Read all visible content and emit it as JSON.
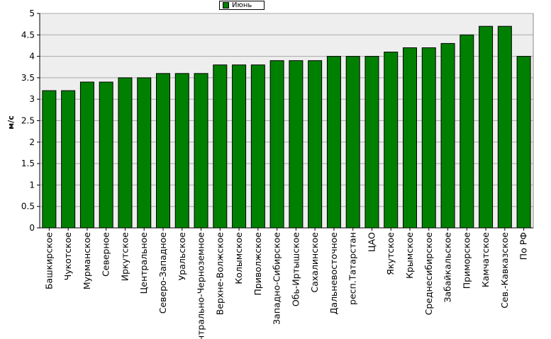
{
  "chart_data": {
    "type": "bar",
    "title": "",
    "xlabel": "",
    "ylabel": "м/с",
    "ylim": [
      0,
      5
    ],
    "yticks": [
      "0",
      "0.5",
      "1",
      "1.5",
      "2",
      "2.5",
      "3",
      "3.5",
      "4",
      "4.5",
      "5"
    ],
    "grid": true,
    "legend_position": "top-center",
    "colors": {
      "bar": "#008000",
      "plot_background": "#eeeeee",
      "grid": "#aaaaaa"
    },
    "categories": [
      "Башкирское",
      "Чукотское",
      "Мурманское",
      "Северное",
      "Иркутское",
      "Центральное",
      "Северо-Западное",
      "Уральское",
      "Центрально-Черноземное",
      "Верхне-Волжское",
      "Колымское",
      "Приволжское",
      "Западно-Сибирское",
      "Обь-Иртышское",
      "Сахалинское",
      "Дальневосточное",
      "респ.Татарстан",
      "ЦАО",
      "Якутское",
      "Крымское",
      "Среднесибирское",
      "Забайкальское",
      "Приморское",
      "Камчатское",
      "Сев.-Кавказское",
      "По РФ"
    ],
    "series": [
      {
        "name": "Июнь",
        "values": [
          3.2,
          3.2,
          3.4,
          3.4,
          3.5,
          3.5,
          3.6,
          3.6,
          3.6,
          3.8,
          3.8,
          3.8,
          3.9,
          3.9,
          3.9,
          4.0,
          4.0,
          4.0,
          4.1,
          4.2,
          4.2,
          4.3,
          4.5,
          4.7,
          4.7,
          4.0
        ]
      }
    ]
  }
}
